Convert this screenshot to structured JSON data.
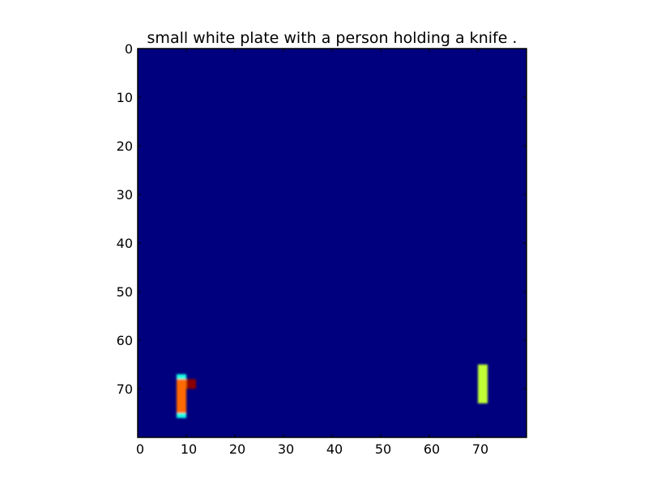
{
  "chart_data": {
    "type": "heatmap",
    "title": "small white plate with a person holding a knife .",
    "xlabel": "",
    "ylabel": "",
    "xlim": [
      0,
      80
    ],
    "ylim": [
      80,
      0
    ],
    "x_ticks": [
      "0",
      "10",
      "20",
      "30",
      "40",
      "50",
      "60",
      "70"
    ],
    "y_ticks": [
      "0",
      "10",
      "20",
      "30",
      "40",
      "50",
      "60",
      "70"
    ],
    "grid": false,
    "colormap": "jet",
    "background_value": 0.0,
    "background_color": "#00007f",
    "blobs": [
      {
        "name": "left-bar-outline",
        "x0": 8,
        "x1": 10,
        "y0": 67,
        "y1": 76,
        "color": "#19ffe5"
      },
      {
        "name": "left-bar-core",
        "x0": 8,
        "x1": 10,
        "y0": 68,
        "y1": 75,
        "color": "#ff6a00"
      },
      {
        "name": "left-bar-spot",
        "x0": 10,
        "x1": 12,
        "y0": 68,
        "y1": 70,
        "color": "#8b0000"
      },
      {
        "name": "right-bar",
        "x0": 70,
        "x1": 72,
        "y0": 65,
        "y1": 73,
        "color": "#c1ff36"
      }
    ]
  }
}
